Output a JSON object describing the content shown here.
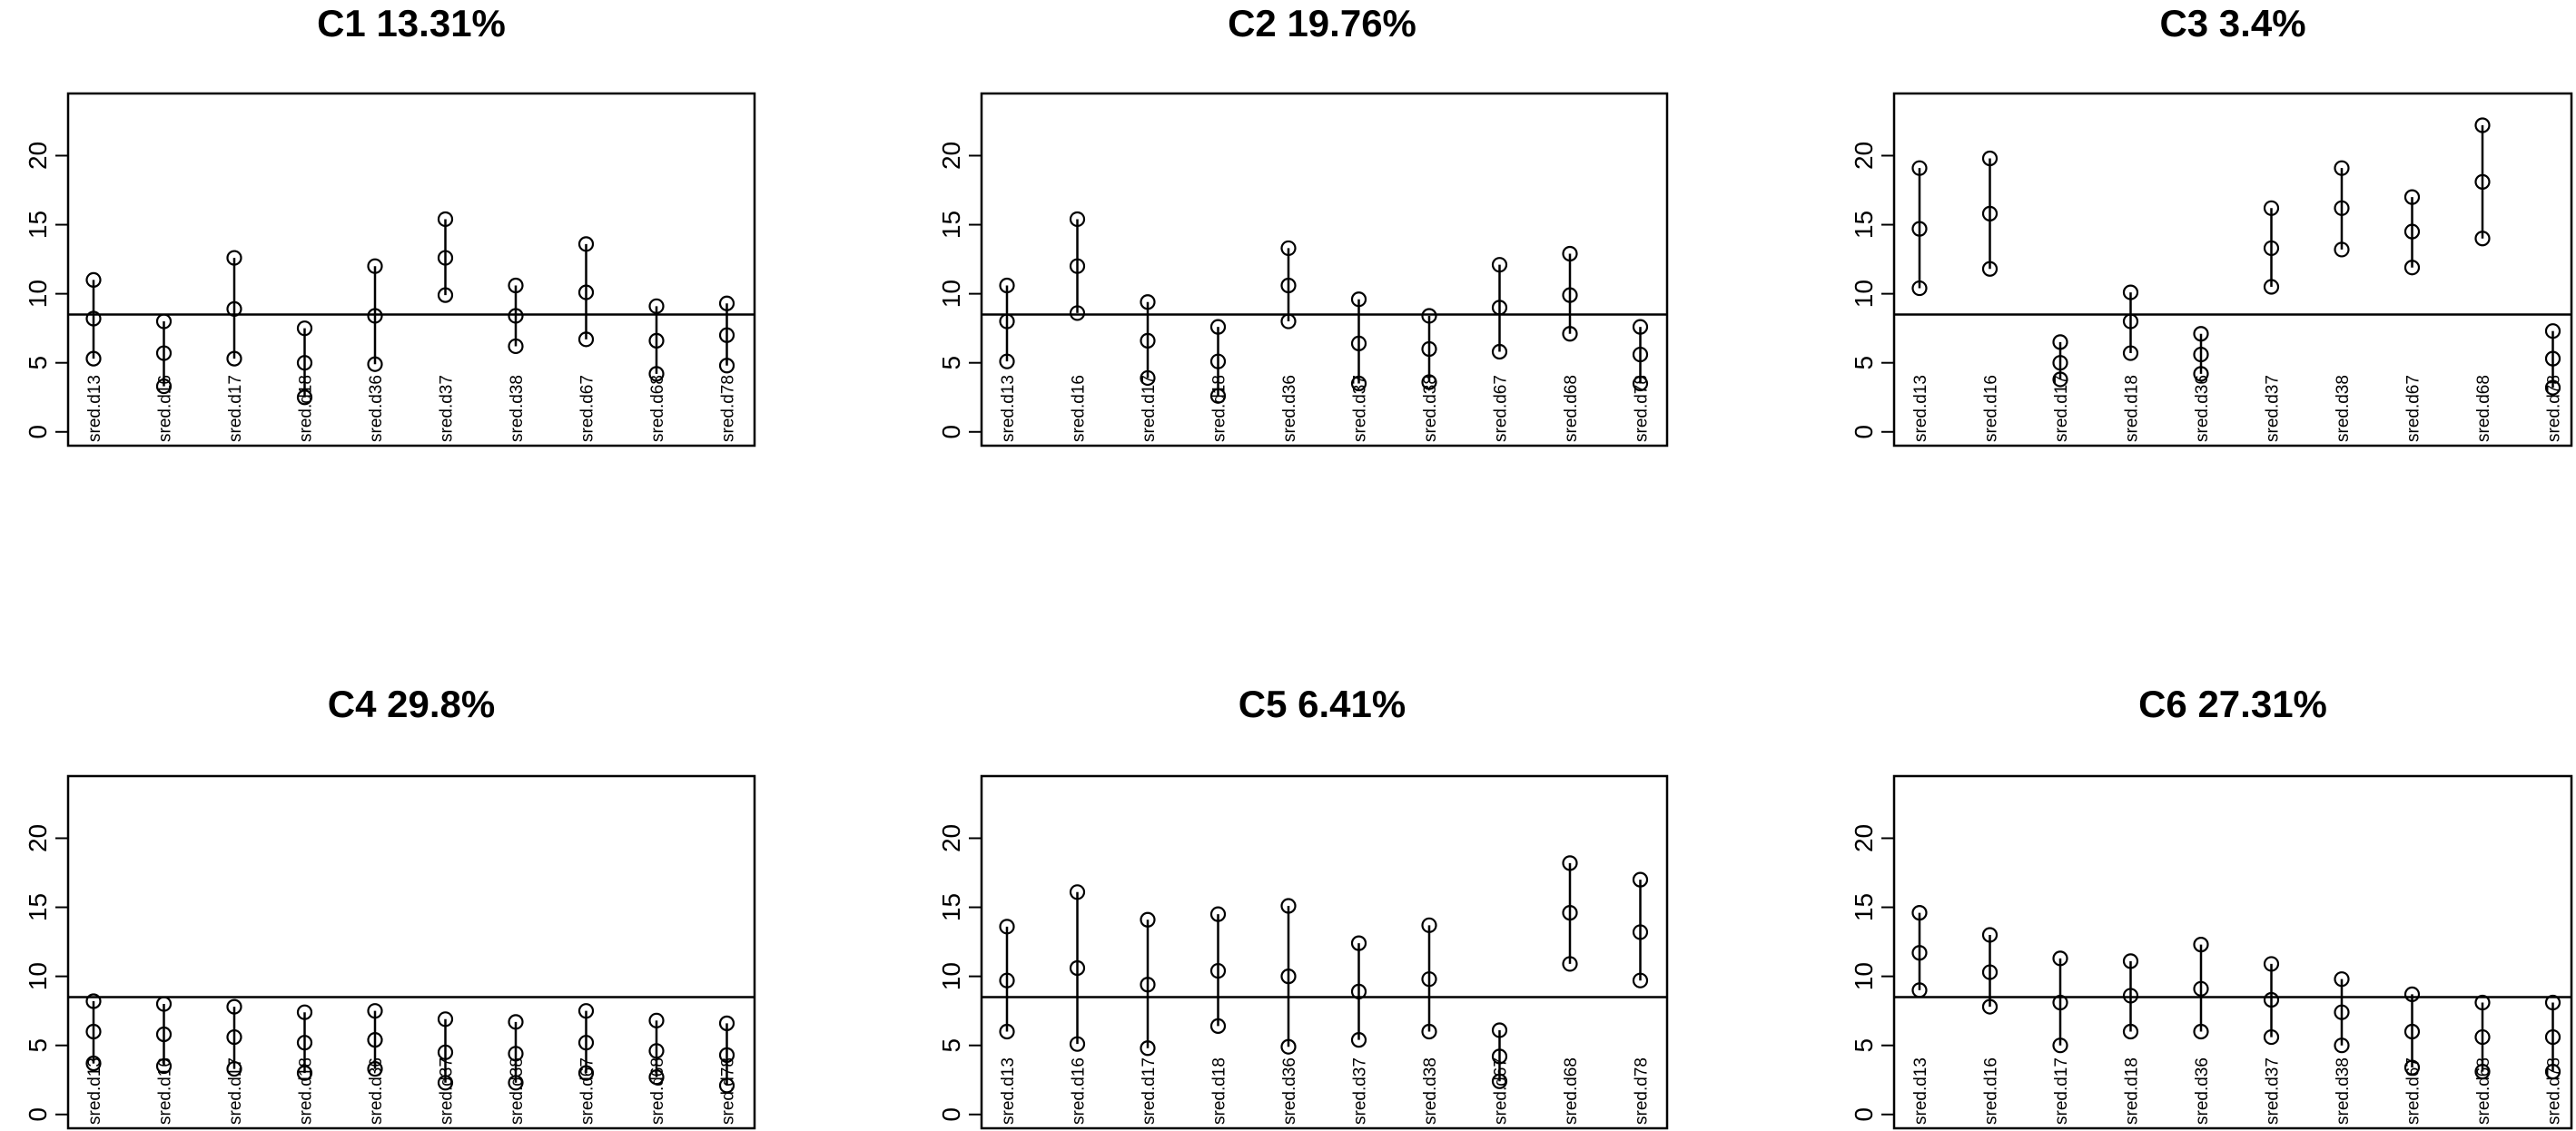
{
  "chart_data": [
    {
      "type": "errorbar",
      "title": "C1 13.31%",
      "categories": [
        "sred.d13",
        "sred.d16",
        "sred.d17",
        "sred.d18",
        "sred.d36",
        "sred.d37",
        "sred.d38",
        "sred.d67",
        "sred.d68",
        "sred.d78"
      ],
      "series": [
        {
          "role": "upper",
          "values": [
            11.0,
            8.0,
            12.6,
            7.5,
            12.0,
            15.4,
            10.6,
            13.6,
            9.1,
            9.3
          ]
        },
        {
          "role": "center",
          "values": [
            8.2,
            5.7,
            8.9,
            5.0,
            8.4,
            12.6,
            8.4,
            10.1,
            6.6,
            7.0
          ]
        },
        {
          "role": "lower",
          "values": [
            5.3,
            3.3,
            5.3,
            2.5,
            4.9,
            9.9,
            6.2,
            6.7,
            4.2,
            4.8
          ]
        }
      ],
      "hline": 8.5,
      "yticks": [
        0,
        5,
        10,
        15,
        20
      ],
      "ylim": [
        -1,
        24.5
      ]
    },
    {
      "type": "errorbar",
      "title": "C2 19.76%",
      "categories": [
        "sred.d13",
        "sred.d16",
        "sred.d17",
        "sred.d18",
        "sred.d36",
        "sred.d37",
        "sred.d38",
        "sred.d67",
        "sred.d68",
        "sred.d78"
      ],
      "series": [
        {
          "role": "upper",
          "values": [
            10.6,
            15.4,
            9.4,
            7.6,
            13.3,
            9.6,
            8.4,
            12.1,
            12.9,
            7.6
          ]
        },
        {
          "role": "center",
          "values": [
            8.0,
            12.0,
            6.6,
            5.1,
            10.6,
            6.4,
            6.0,
            9.0,
            9.9,
            5.6
          ]
        },
        {
          "role": "lower",
          "values": [
            5.1,
            8.6,
            3.9,
            2.6,
            8.0,
            3.5,
            3.6,
            5.8,
            7.1,
            3.5
          ]
        }
      ],
      "hline": 8.5,
      "yticks": [
        0,
        5,
        10,
        15,
        20
      ],
      "ylim": [
        -1,
        24.5
      ]
    },
    {
      "type": "errorbar",
      "title": "C3 3.4%",
      "categories": [
        "sred.d13",
        "sred.d16",
        "sred.d17",
        "sred.d18",
        "sred.d36",
        "sred.d37",
        "sred.d38",
        "sred.d67",
        "sred.d68",
        "sred.d78"
      ],
      "series": [
        {
          "role": "upper",
          "values": [
            19.1,
            19.8,
            6.5,
            10.1,
            7.1,
            16.2,
            19.1,
            17.0,
            22.2,
            7.3
          ]
        },
        {
          "role": "center",
          "values": [
            14.7,
            15.8,
            5.0,
            8.0,
            5.6,
            13.3,
            16.2,
            14.5,
            18.1,
            5.3
          ]
        },
        {
          "role": "lower",
          "values": [
            10.4,
            11.8,
            3.8,
            5.7,
            4.2,
            10.5,
            13.2,
            11.9,
            14.0,
            3.2
          ]
        }
      ],
      "hline": 8.5,
      "yticks": [
        0,
        5,
        10,
        15,
        20
      ],
      "ylim": [
        -1,
        24.5
      ]
    },
    {
      "type": "errorbar",
      "title": "C4 29.8%",
      "categories": [
        "sred.d13",
        "sred.d16",
        "sred.d17",
        "sred.d18",
        "sred.d36",
        "sred.d37",
        "sred.d38",
        "sred.d67",
        "sred.d68",
        "sred.d78"
      ],
      "series": [
        {
          "role": "upper",
          "values": [
            8.2,
            8.0,
            7.8,
            7.4,
            7.5,
            6.9,
            6.7,
            7.5,
            6.8,
            6.6
          ]
        },
        {
          "role": "center",
          "values": [
            6.0,
            5.8,
            5.6,
            5.2,
            5.4,
            4.5,
            4.4,
            5.2,
            4.6,
            4.3
          ]
        },
        {
          "role": "lower",
          "values": [
            3.7,
            3.5,
            3.3,
            3.0,
            3.3,
            2.3,
            2.3,
            3.0,
            2.7,
            2.1
          ]
        }
      ],
      "hline": 8.5,
      "yticks": [
        0,
        5,
        10,
        15,
        20
      ],
      "ylim": [
        -1,
        24.5
      ]
    },
    {
      "type": "errorbar",
      "title": "C5 6.41%",
      "categories": [
        "sred.d13",
        "sred.d16",
        "sred.d17",
        "sred.d18",
        "sred.d36",
        "sred.d37",
        "sred.d38",
        "sred.d67",
        "sred.d68",
        "sred.d78"
      ],
      "series": [
        {
          "role": "upper",
          "values": [
            13.6,
            16.1,
            14.1,
            14.5,
            15.1,
            12.4,
            13.7,
            6.1,
            18.2,
            17.0
          ]
        },
        {
          "role": "center",
          "values": [
            9.7,
            10.6,
            9.4,
            10.4,
            10.0,
            8.9,
            9.8,
            4.2,
            14.6,
            13.2
          ]
        },
        {
          "role": "lower",
          "values": [
            6.0,
            5.1,
            4.8,
            6.4,
            4.9,
            5.4,
            6.0,
            2.4,
            10.9,
            9.7
          ]
        }
      ],
      "hline": 8.5,
      "yticks": [
        0,
        5,
        10,
        15,
        20
      ],
      "ylim": [
        -1,
        24.5
      ]
    },
    {
      "type": "errorbar",
      "title": "C6 27.31%",
      "categories": [
        "sred.d13",
        "sred.d16",
        "sred.d17",
        "sred.d18",
        "sred.d36",
        "sred.d37",
        "sred.d38",
        "sred.d67",
        "sred.d68",
        "sred.d78"
      ],
      "series": [
        {
          "role": "upper",
          "values": [
            14.6,
            13.0,
            11.3,
            11.1,
            12.3,
            10.9,
            9.8,
            8.7,
            8.1,
            8.1
          ]
        },
        {
          "role": "center",
          "values": [
            11.7,
            10.3,
            8.1,
            8.6,
            9.1,
            8.3,
            7.4,
            6.0,
            5.6,
            5.6
          ]
        },
        {
          "role": "lower",
          "values": [
            9.0,
            7.8,
            5.0,
            6.0,
            6.0,
            5.6,
            5.0,
            3.4,
            3.1,
            3.1
          ]
        }
      ],
      "hline": 8.5,
      "yticks": [
        0,
        5,
        10,
        15,
        20
      ],
      "ylim": [
        -1,
        24.5
      ]
    }
  ]
}
